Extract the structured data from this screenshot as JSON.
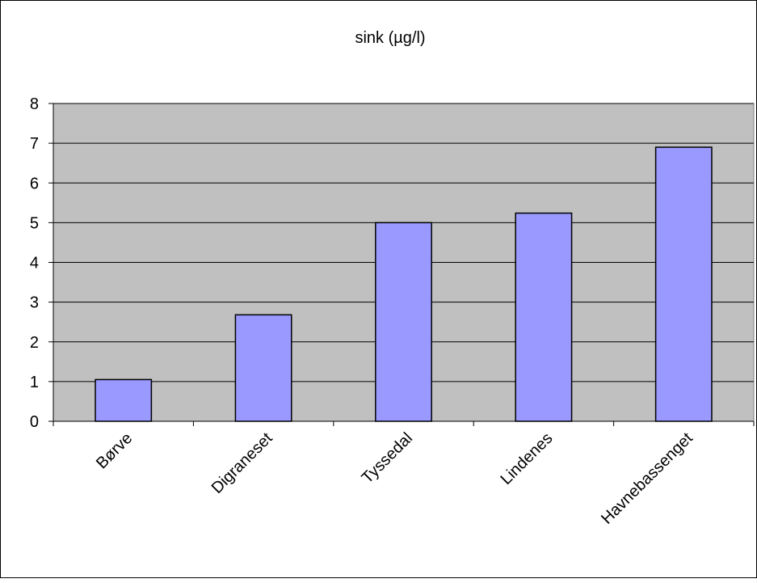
{
  "chart_data": {
    "type": "bar",
    "title": "sink (µg/l)",
    "categories": [
      "Børve",
      "Digraneset",
      "Tyssedal",
      "Lindenes",
      "Havnebassenget"
    ],
    "values": [
      1.05,
      2.68,
      5.0,
      5.24,
      6.9
    ],
    "xlabel": "",
    "ylabel": "",
    "ylim": [
      0,
      8
    ],
    "yticks": [
      0,
      1,
      2,
      3,
      4,
      5,
      6,
      7,
      8
    ],
    "grid": true,
    "legend": "none",
    "colors": {
      "bar_fill": "#9999ff",
      "bar_stroke": "#000000",
      "plot_background": "#c0c0c0",
      "gridline": "#000000"
    }
  }
}
